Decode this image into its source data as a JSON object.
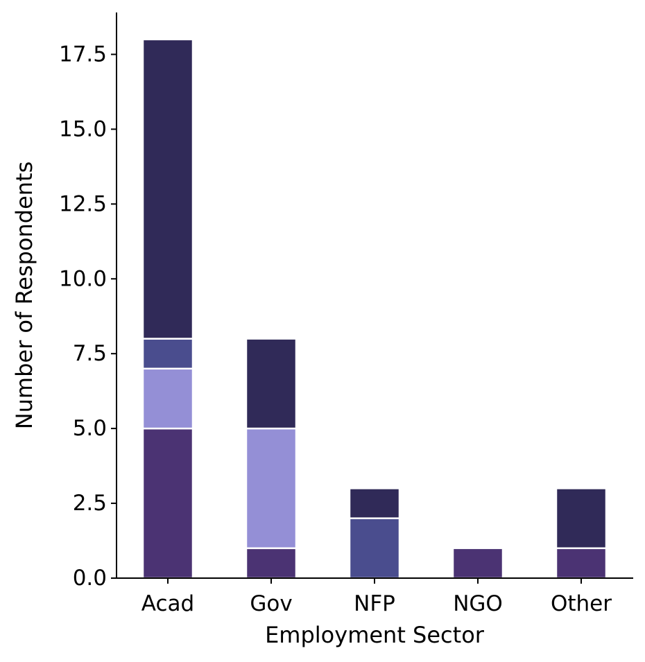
{
  "chart_data": {
    "type": "bar",
    "stacked": true,
    "categories": [
      "Acad",
      "Gov",
      "NFP",
      "NGO",
      "Other"
    ],
    "series": [
      {
        "color": "#4b3373",
        "values": [
          5,
          1,
          0,
          1,
          1
        ]
      },
      {
        "color": "#948fd6",
        "values": [
          2,
          4,
          0,
          0,
          0
        ]
      },
      {
        "color": "#4a4d8e",
        "values": [
          1,
          0,
          2,
          0,
          0
        ]
      },
      {
        "color": "#302a58",
        "values": [
          10,
          3,
          1,
          0,
          2
        ]
      }
    ],
    "title": "",
    "xlabel": "Employment Sector",
    "ylabel": "Number of Respondents",
    "ylim": [
      0,
      18.9
    ],
    "yticks": [
      0.0,
      2.5,
      5.0,
      7.5,
      10.0,
      12.5,
      15.0,
      17.5
    ],
    "ytick_labels": [
      "0.0",
      "2.5",
      "5.0",
      "7.5",
      "10.0",
      "12.5",
      "15.0",
      "17.5"
    ],
    "grid": false,
    "legend": "none"
  }
}
